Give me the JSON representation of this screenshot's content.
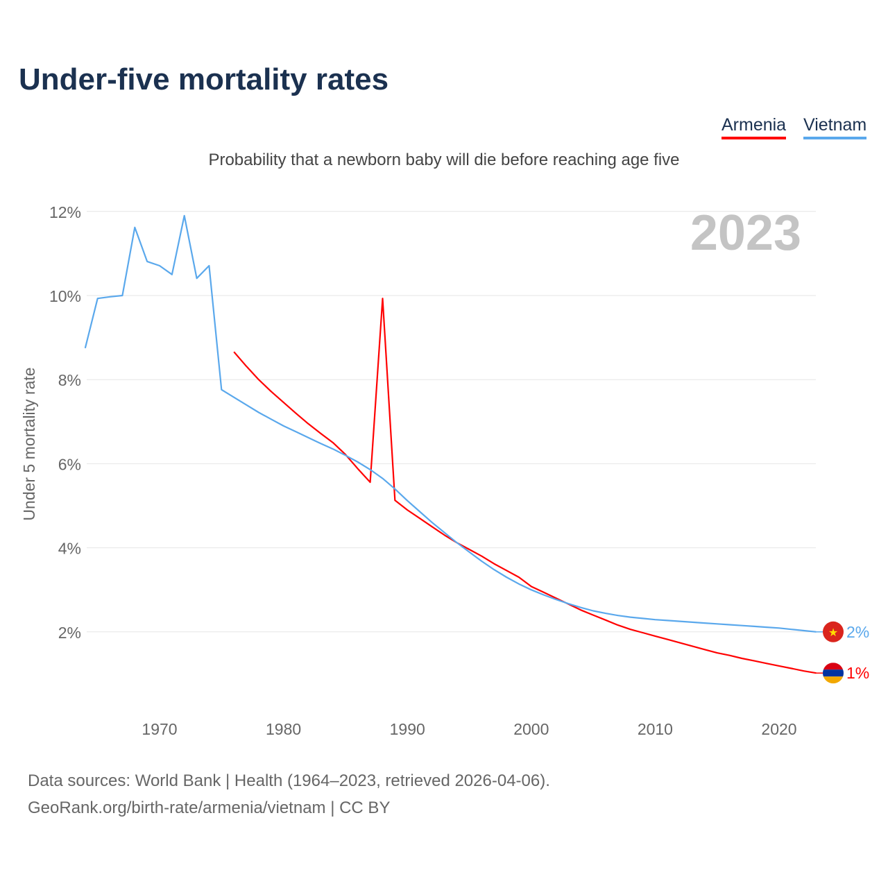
{
  "title": "Under-five mortality rates",
  "legend": [
    "Armenia",
    "Vietnam"
  ],
  "subtitle": "Probability that a newborn baby will die before reaching age five",
  "year_label": "2023",
  "footer": {
    "line1": "Data sources: World Bank | Health (1964–2023, retrieved 2026-04-06).",
    "line2": "GeoRank.org/birth-rate/armenia/vietnam | CC BY"
  },
  "chart_data": {
    "type": "line",
    "title": "Under-five mortality rates",
    "xlabel": "",
    "ylabel": "Under 5 mortality rate",
    "xlim": [
      1964,
      2023
    ],
    "ylim": [
      0,
      12
    ],
    "xticks": [
      1970,
      1980,
      1990,
      2000,
      2010,
      2020
    ],
    "yticks": [
      2,
      4,
      6,
      8,
      10,
      12
    ],
    "ytick_labels": [
      "2%",
      "4%",
      "6%",
      "8%",
      "10%",
      "12%"
    ],
    "grid": true,
    "legend_position": "top-right",
    "series": [
      {
        "name": "Armenia",
        "color": "#ff0000",
        "start_year": 1976,
        "end_label": "1%",
        "values": [
          8.66,
          8.32,
          8.0,
          7.72,
          7.46,
          7.2,
          6.95,
          6.72,
          6.5,
          6.22,
          5.88,
          5.56,
          9.93,
          5.13,
          4.9,
          4.7,
          4.5,
          4.3,
          4.12,
          3.96,
          3.8,
          3.62,
          3.46,
          3.3,
          3.08,
          2.94,
          2.8,
          2.66,
          2.52,
          2.4,
          2.28,
          2.16,
          2.06,
          1.98,
          1.9,
          1.82,
          1.74,
          1.66,
          1.58,
          1.5,
          1.44,
          1.37,
          1.31,
          1.25,
          1.19,
          1.13,
          1.07,
          1.02
        ]
      },
      {
        "name": "Vietnam",
        "color": "#5aa8ec",
        "start_year": 1964,
        "end_label": "2%",
        "values": [
          8.75,
          9.93,
          9.97,
          10.0,
          11.62,
          10.81,
          10.71,
          10.5,
          11.9,
          10.41,
          10.71,
          7.76,
          7.58,
          7.4,
          7.22,
          7.06,
          6.9,
          6.76,
          6.62,
          6.48,
          6.35,
          6.2,
          6.04,
          5.86,
          5.65,
          5.4,
          5.12,
          4.86,
          4.6,
          4.36,
          4.12,
          3.9,
          3.68,
          3.48,
          3.3,
          3.14,
          3.0,
          2.88,
          2.77,
          2.67,
          2.58,
          2.5,
          2.44,
          2.39,
          2.35,
          2.32,
          2.29,
          2.27,
          2.25,
          2.23,
          2.21,
          2.19,
          2.17,
          2.15,
          2.13,
          2.11,
          2.09,
          2.06,
          2.03,
          2.0
        ]
      }
    ]
  }
}
